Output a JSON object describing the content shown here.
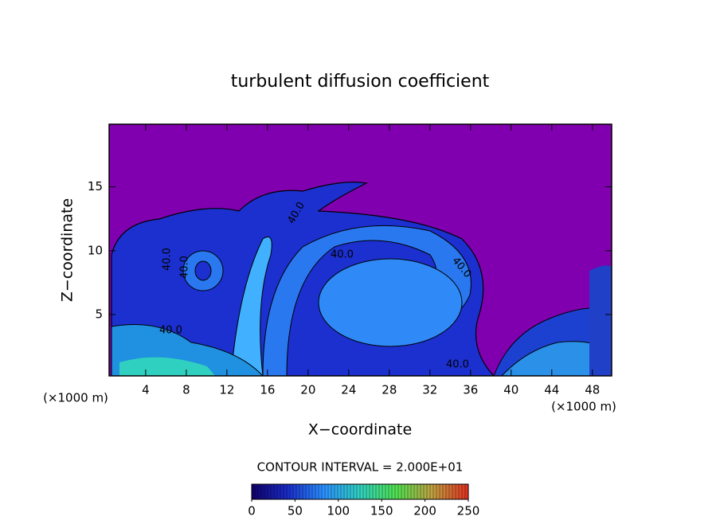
{
  "chart_data": {
    "type": "contour",
    "title": "turbulent diffusion coefficient",
    "x_label": "X−coordinate",
    "y_label": "Z−coordinate",
    "x_unit": "(×1000 m)",
    "y_unit": "(×1000 m)",
    "xlim": [
      0.4,
      49.9
    ],
    "xticks": [
      4,
      8,
      12,
      16,
      20,
      24,
      28,
      32,
      36,
      40,
      44,
      48
    ],
    "ylim": [
      0.2,
      19.9
    ],
    "yticks": [
      5,
      10,
      15
    ],
    "contour_interval_text": "CONTOUR INTERVAL = 2.000E+01",
    "contour_labels": [
      "40.0",
      "40.0",
      "40.0",
      "40.0",
      "40.0",
      "40.0",
      "40.0"
    ],
    "colorbar": {
      "lim": [
        0,
        250
      ],
      "ticks": [
        0,
        50,
        100,
        150,
        200,
        250
      ],
      "colors": [
        "#10006a",
        "#1a2cc8",
        "#2a90ff",
        "#30d0c0",
        "#50e050",
        "#c0a040",
        "#e03020"
      ]
    },
    "background_color": "#8000b0"
  }
}
